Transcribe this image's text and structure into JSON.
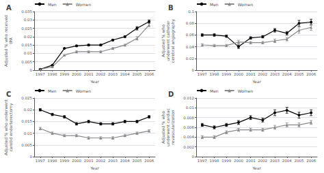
{
  "chart_data": [
    {
      "type": "line",
      "title": "A",
      "xlabel": "Year",
      "ylabel": "Adjusted % who received\ntPA",
      "x": [
        1997,
        1998,
        1999,
        2000,
        2001,
        2002,
        2003,
        2004,
        2005,
        2006
      ],
      "xlim": [
        1996.5,
        2006.5
      ],
      "xticks": [
        1997,
        1998,
        1999,
        2000,
        2001,
        2002,
        2003,
        2004,
        2005,
        2006
      ],
      "ylim": [
        0,
        0.035
      ],
      "yticks": [
        0,
        0.005,
        0.01,
        0.015,
        0.02,
        0.025,
        0.03,
        0.035
      ],
      "grid": true,
      "legend": "upper left",
      "series": [
        {
          "name": "Men",
          "color": "#000000",
          "marker": "circle",
          "values": [
            0.0005,
            0.003,
            0.013,
            0.0145,
            0.015,
            0.015,
            0.018,
            0.02,
            0.025,
            0.029
          ],
          "errors": [
            0,
            0,
            0,
            0.0005,
            0.0005,
            0.0005,
            0.0005,
            0.0005,
            0.001,
            0.001
          ]
        },
        {
          "name": "Women",
          "color": "#888888",
          "marker": "triangle",
          "values": [
            0.0005,
            0.002,
            0.009,
            0.011,
            0.011,
            0.011,
            0.013,
            0.015,
            0.019,
            0.027
          ],
          "errors": [
            0,
            0,
            0,
            0.0005,
            0.0005,
            0.0005,
            0.0005,
            0.0005,
            0.001,
            0.001
          ]
        }
      ]
    },
    {
      "type": "line",
      "title": "B",
      "xlabel": "Year",
      "ylabel": "Adjusted % who\nunderwent catheter\ncerebral angiography",
      "x": [
        1997,
        1998,
        1999,
        2000,
        2001,
        2002,
        2003,
        2004,
        2005,
        2006
      ],
      "xlim": [
        1996.5,
        2006.5
      ],
      "xticks": [
        1997,
        1998,
        1999,
        2000,
        2001,
        2002,
        2003,
        2004,
        2005,
        2006
      ],
      "ylim": [
        0,
        0.1
      ],
      "yticks": [
        0,
        0.02,
        0.04,
        0.06,
        0.08,
        0.1
      ],
      "grid": true,
      "legend": "upper left",
      "series": [
        {
          "name": "Men",
          "color": "#000000",
          "marker": "circle",
          "values": [
            0.06,
            0.06,
            0.058,
            0.04,
            0.055,
            0.057,
            0.068,
            0.063,
            0.08,
            0.082
          ],
          "errors": [
            0.002,
            0.002,
            0.002,
            0.003,
            0.002,
            0.002,
            0.003,
            0.003,
            0.005,
            0.005
          ]
        },
        {
          "name": "Women",
          "color": "#888888",
          "marker": "triangle",
          "values": [
            0.043,
            0.042,
            0.042,
            0.048,
            0.047,
            0.047,
            0.05,
            0.053,
            0.068,
            0.073
          ],
          "errors": [
            0.002,
            0.002,
            0.002,
            0.003,
            0.002,
            0.002,
            0.003,
            0.003,
            0.005,
            0.005
          ]
        }
      ]
    },
    {
      "type": "line",
      "title": "C",
      "xlabel": "Year",
      "ylabel": "Adjusted % who underwent\ncarotid endarterectomy",
      "x": [
        1997,
        1998,
        1999,
        2000,
        2001,
        2002,
        2003,
        2004,
        2005,
        2006
      ],
      "xlim": [
        1996.5,
        2006.5
      ],
      "xticks": [
        1997,
        1998,
        1999,
        2000,
        2001,
        2002,
        2003,
        2004,
        2005,
        2006
      ],
      "ylim": [
        0,
        0.025
      ],
      "yticks": [
        0,
        0.005,
        0.01,
        0.015,
        0.02,
        0.025
      ],
      "grid": true,
      "legend": "upper left",
      "series": [
        {
          "name": "Men",
          "color": "#000000",
          "marker": "circle",
          "values": [
            0.02,
            0.018,
            0.017,
            0.014,
            0.015,
            0.014,
            0.014,
            0.015,
            0.015,
            0.017
          ],
          "errors": [
            0.0005,
            0.0005,
            0.0005,
            0.0005,
            0.0005,
            0.0005,
            0.0005,
            0.0005,
            0.0005,
            0.0005
          ]
        },
        {
          "name": "Women",
          "color": "#888888",
          "marker": "triangle",
          "values": [
            0.012,
            0.01,
            0.009,
            0.009,
            0.008,
            0.008,
            0.008,
            0.009,
            0.01,
            0.011
          ],
          "errors": [
            0.0005,
            0.0005,
            0.0005,
            0.0005,
            0.0005,
            0.0005,
            0.0005,
            0.0005,
            0.0005,
            0.0005
          ]
        }
      ]
    },
    {
      "type": "line",
      "title": "D",
      "xlabel": "Year",
      "ylabel": "Adjusted % who\nunderwent cardiac\nrevascularization",
      "x": [
        1997,
        1998,
        1999,
        2000,
        2001,
        2002,
        2003,
        2004,
        2005,
        2006
      ],
      "xlim": [
        1996.5,
        2006.5
      ],
      "xticks": [
        1997,
        1998,
        1999,
        2000,
        2001,
        2002,
        2003,
        2004,
        2005,
        2006
      ],
      "ylim": [
        0,
        0.012
      ],
      "yticks": [
        0,
        0.002,
        0.004,
        0.006,
        0.008,
        0.01,
        0.012
      ],
      "grid": true,
      "legend": "upper left",
      "series": [
        {
          "name": "Men",
          "color": "#000000",
          "marker": "circle",
          "values": [
            0.0065,
            0.006,
            0.0065,
            0.007,
            0.008,
            0.0075,
            0.009,
            0.0095,
            0.0085,
            0.009
          ],
          "errors": [
            0.0003,
            0.0003,
            0.0003,
            0.0004,
            0.0004,
            0.0004,
            0.0006,
            0.0006,
            0.0006,
            0.0006
          ]
        },
        {
          "name": "Women",
          "color": "#888888",
          "marker": "triangle",
          "values": [
            0.004,
            0.004,
            0.005,
            0.0055,
            0.0055,
            0.0055,
            0.006,
            0.0065,
            0.0065,
            0.007
          ],
          "errors": [
            0.0003,
            0.0003,
            0.0003,
            0.0003,
            0.0003,
            0.0003,
            0.0004,
            0.0004,
            0.0004,
            0.0004
          ]
        }
      ]
    }
  ]
}
